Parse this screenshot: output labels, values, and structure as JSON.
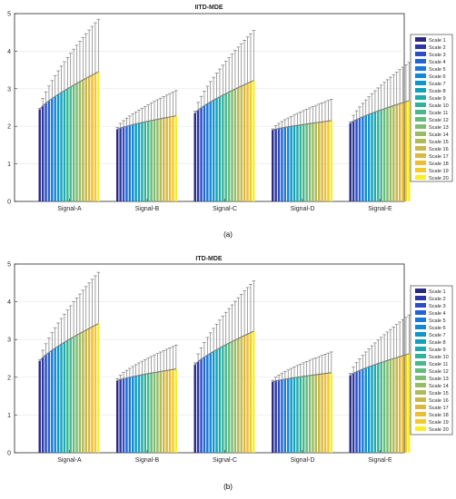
{
  "figure": {
    "panel_labels": [
      "(a)",
      "(b)"
    ]
  },
  "chart_data": [
    {
      "type": "bar",
      "title": "IITD-MDE",
      "xlabel": "",
      "ylabel": "",
      "ylim": [
        0,
        5
      ],
      "yticks": [
        0,
        1,
        2,
        3,
        4,
        5
      ],
      "grid": true,
      "legend_position": "right",
      "error_bars": true,
      "categories": [
        "Signal-A",
        "Signal-B",
        "Signal-C",
        "Signal-D",
        "Signal-E"
      ],
      "series_names": [
        "Scale 1",
        "Scale 2",
        "Scale 3",
        "Scale 4",
        "Scale 5",
        "Scale 6",
        "Scale 7",
        "Scale 8",
        "Scale 9",
        "Scale 10",
        "Scale 11",
        "Scale 12",
        "Scale 13",
        "Scale 14",
        "Scale 15",
        "Scale 16",
        "Scale 17",
        "Scale 18",
        "Scale 19",
        "Scale 20"
      ],
      "series_colors": [
        "#2a2a7e",
        "#2d35a8",
        "#2a4ec6",
        "#2264d8",
        "#1677dd",
        "#0f88d8",
        "#0c96cc",
        "#10a2bd",
        "#1cabad",
        "#30b39c",
        "#48b88c",
        "#62bc7d",
        "#7dbd70",
        "#98bc64",
        "#b1ba58",
        "#c8b84c",
        "#ddb840",
        "#edbd33",
        "#f6c92a",
        "#f9f01e"
      ],
      "mean_ranges": [
        [
          2.45,
          3.45
        ],
        [
          1.92,
          2.28
        ],
        [
          2.35,
          3.22
        ],
        [
          1.9,
          2.15
        ],
        [
          2.08,
          2.68
        ]
      ],
      "upper_ranges": [
        [
          2.48,
          4.85
        ],
        [
          1.97,
          2.95
        ],
        [
          2.4,
          4.55
        ],
        [
          1.93,
          2.72
        ],
        [
          2.12,
          3.7
        ]
      ]
    },
    {
      "type": "bar",
      "title": "ITD-MDE",
      "xlabel": "",
      "ylabel": "",
      "ylim": [
        0,
        5
      ],
      "yticks": [
        0,
        1,
        2,
        3,
        4,
        5
      ],
      "grid": true,
      "legend_position": "right",
      "error_bars": true,
      "categories": [
        "Signal-A",
        "Signal-B",
        "Signal-C",
        "Signal-D",
        "Signal-E"
      ],
      "series_names": [
        "Scale 1",
        "Scale 2",
        "Scale 3",
        "Scale 4",
        "Scale 5",
        "Scale 6",
        "Scale 7",
        "Scale 8",
        "Scale 9",
        "Scale 10",
        "Scale 11",
        "Scale 12",
        "Scale 13",
        "Scale 14",
        "Scale 15",
        "Scale 16",
        "Scale 17",
        "Scale 18",
        "Scale 19",
        "Scale 20"
      ],
      "series_colors": [
        "#2a2a7e",
        "#2d35a8",
        "#2a4ec6",
        "#2264d8",
        "#1677dd",
        "#0f88d8",
        "#0c96cc",
        "#10a2bd",
        "#1cabad",
        "#30b39c",
        "#48b88c",
        "#62bc7d",
        "#7dbd70",
        "#98bc64",
        "#b1ba58",
        "#c8b84c",
        "#ddb840",
        "#edbd33",
        "#f6c92a",
        "#f9f01e"
      ],
      "mean_ranges": [
        [
          2.43,
          3.42
        ],
        [
          1.91,
          2.22
        ],
        [
          2.33,
          3.22
        ],
        [
          1.88,
          2.12
        ],
        [
          2.05,
          2.62
        ]
      ],
      "upper_ranges": [
        [
          2.46,
          4.78
        ],
        [
          1.96,
          2.85
        ],
        [
          2.38,
          4.55
        ],
        [
          1.92,
          2.67
        ],
        [
          2.1,
          3.65
        ]
      ]
    }
  ]
}
